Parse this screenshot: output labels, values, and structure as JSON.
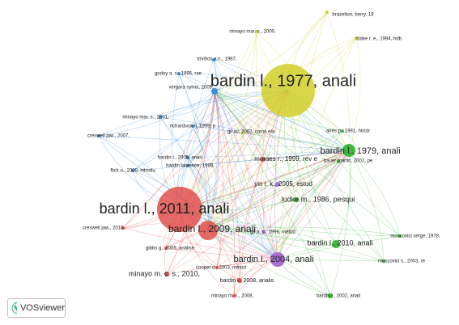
{
  "nodes": [
    {
      "label": "bardin l., 1977, anali",
      "color": "#d2cf2a"
    },
    {
      "label": "brazelton, berry, 19",
      "color": "#d2cf2a"
    },
    {
      "label": "minayo mar. s., 2000,",
      "color": "#d2cf2a"
    },
    {
      "label": "stake r. e., 1994, hdb",
      "color": "#d2cf2a"
    },
    {
      "label": "gil ac, 2002, como ela",
      "color": "#d2cf2a"
    },
    {
      "label": "bardin l., 1979, anali",
      "color": "#3dba3d"
    },
    {
      "label": "ariès p., 1981, histór",
      "color": "#3dba3d"
    },
    {
      "label": "bauer martin, 2002, pe",
      "color": "#3dba3d"
    },
    {
      "label": "ludke m., 1986, pesqui",
      "color": "#3dba3d"
    },
    {
      "label": "bardin l., 2010, anali",
      "color": "#3dba3d"
    },
    {
      "label": "moscovici serge, 1978,",
      "color": "#3dba3d"
    },
    {
      "label": "moscovici s., 2003, re",
      "color": "#3dba3d"
    },
    {
      "label": "bardin l., 2002, anali",
      "color": "#3dba3d"
    },
    {
      "label": "triviños a.n., 1987,",
      "color": "#3f8fd6"
    },
    {
      "label": "godoy a. s., 1995, rae",
      "color": "#3f8fd6"
    },
    {
      "label": "vergara sylvia, 2005,",
      "color": "#3f8fd6"
    },
    {
      "label": "minayo mar. s., 2001,",
      "color": "#3f8fd6"
    },
    {
      "label": "richardson rj, 1999, p",
      "color": "#3f8fd6"
    },
    {
      "label": "creswell jaw., 2007,",
      "color": "#3f8fd6"
    },
    {
      "label": "bardin l., 2006, anali",
      "color": "#3f8fd6"
    },
    {
      "label": "bardin laurence, 1999,",
      "color": "#3f8fd6"
    },
    {
      "label": "flick u., 2009, introdu",
      "color": "#3f8fd6"
    },
    {
      "label": "bardin l., 2011, anali",
      "color": "#e0504e"
    },
    {
      "label": "bardin l., 2009, anali",
      "color": "#e0504e"
    },
    {
      "label": "moraes r., 1999, rev e",
      "color": "#e0504e"
    },
    {
      "label": "creswell jaw., 2010,",
      "color": "#e0504e"
    },
    {
      "label": "gibbs g., 2009, análise",
      "color": "#e0504e"
    },
    {
      "label": "cooper d., 2003, métod",
      "color": "#e0504e"
    },
    {
      "label": "minayo m. c. s., 2010,",
      "color": "#e0504e"
    },
    {
      "label": "bardin l., 2008, analis",
      "color": "#e0504e"
    },
    {
      "label": "minayo m. s., 2008,",
      "color": "#e0504e"
    },
    {
      "label": "bardin l., 2004, anali",
      "color": "#a66fd2"
    },
    {
      "label": "yin r. k., 2005, estud",
      "color": "#a66fd2"
    },
    {
      "label": "gil a. c., 1996, métod",
      "color": "#a66fd2"
    }
  ],
  "brand": "VOSviewer"
}
